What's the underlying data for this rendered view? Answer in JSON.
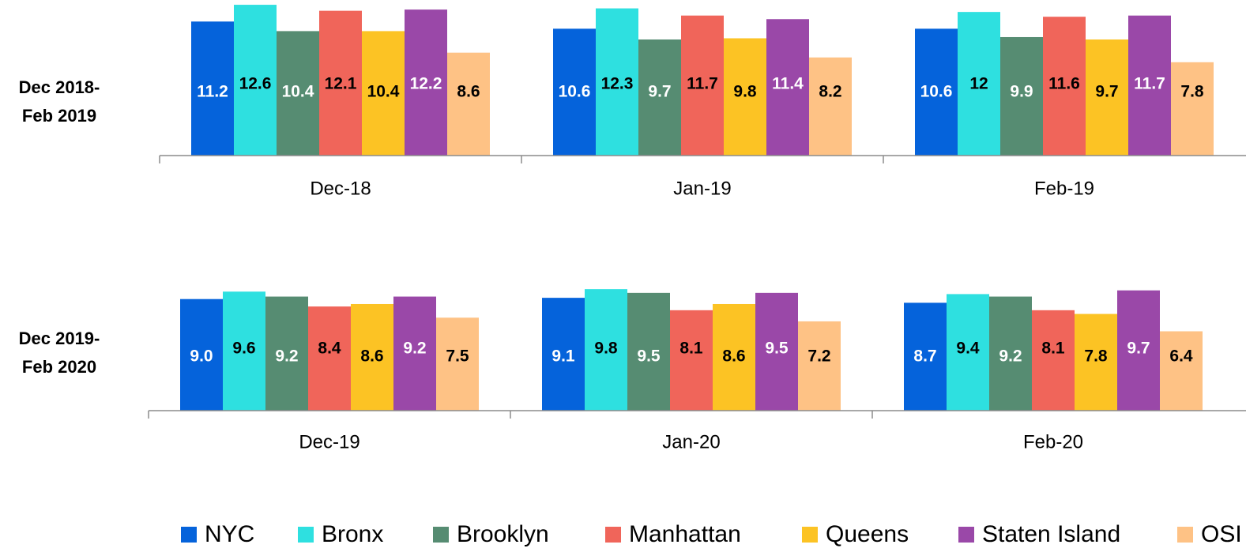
{
  "chart_data": [
    {
      "type": "bar",
      "title": [
        "Dec 2018-",
        "Feb 2019"
      ],
      "categories": [
        "Dec-18",
        "Jan-19",
        "Feb-19"
      ],
      "ylim": [
        0,
        13
      ],
      "series": [
        {
          "name": "NYC",
          "color": "#0563db",
          "label_color": "#ffffff",
          "values": [
            11.2,
            10.6,
            10.6
          ]
        },
        {
          "name": "Bronx",
          "color": "#2ee0e0",
          "label_color": "#000000",
          "values": [
            12.6,
            12.3,
            12
          ]
        },
        {
          "name": "Brooklyn",
          "color": "#568c72",
          "label_color": "#ffffff",
          "values": [
            10.4,
            9.7,
            9.9
          ]
        },
        {
          "name": "Manhattan",
          "color": "#f0655a",
          "label_color": "#000000",
          "values": [
            12.1,
            11.7,
            11.6
          ]
        },
        {
          "name": "Queens",
          "color": "#fcc324",
          "label_color": "#000000",
          "values": [
            10.4,
            9.8,
            9.7
          ]
        },
        {
          "name": "Staten Island",
          "color": "#9a48a8",
          "label_color": "#ffffff",
          "values": [
            12.2,
            11.4,
            11.7
          ]
        },
        {
          "name": "OSI",
          "color": "#fec285",
          "label_color": "#000000",
          "values": [
            8.6,
            8.2,
            7.8
          ]
        }
      ]
    },
    {
      "type": "bar",
      "title": [
        "Dec 2019-",
        "Feb 2020"
      ],
      "categories": [
        "Dec-19",
        "Jan-20",
        "Feb-20"
      ],
      "ylim": [
        0,
        10
      ],
      "series": [
        {
          "name": "NYC",
          "color": "#0563db",
          "label_color": "#ffffff",
          "values": [
            9.0,
            9.1,
            8.7
          ],
          "value_labels": [
            "9.0",
            "9.1",
            "8.7"
          ]
        },
        {
          "name": "Bronx",
          "color": "#2ee0e0",
          "label_color": "#000000",
          "values": [
            9.6,
            9.8,
            9.4
          ]
        },
        {
          "name": "Brooklyn",
          "color": "#568c72",
          "label_color": "#ffffff",
          "values": [
            9.2,
            9.5,
            9.2
          ]
        },
        {
          "name": "Manhattan",
          "color": "#f0655a",
          "label_color": "#000000",
          "values": [
            8.4,
            8.1,
            8.1
          ]
        },
        {
          "name": "Queens",
          "color": "#fcc324",
          "label_color": "#000000",
          "values": [
            8.6,
            8.6,
            7.8
          ]
        },
        {
          "name": "Staten Island",
          "color": "#9a48a8",
          "label_color": "#ffffff",
          "values": [
            9.2,
            9.5,
            9.7
          ]
        },
        {
          "name": "OSI",
          "color": "#fec285",
          "label_color": "#000000",
          "values": [
            7.5,
            7.2,
            6.4
          ]
        }
      ]
    }
  ]
}
